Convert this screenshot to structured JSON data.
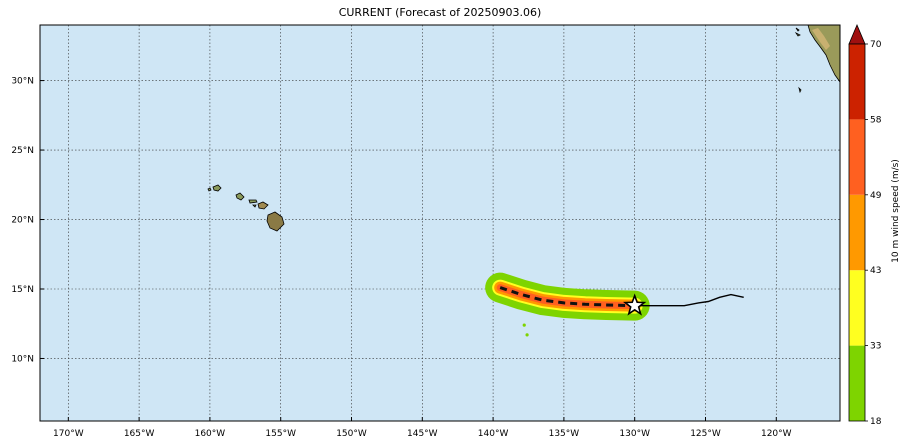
{
  "title": "CURRENT (Forecast of 20250903.06)",
  "map": {
    "lon_range": [
      -172,
      -115.5
    ],
    "lat_range": [
      5.5,
      34
    ],
    "lon_ticks": [
      {
        "value": -170,
        "label": "170°W"
      },
      {
        "value": -165,
        "label": "165°W"
      },
      {
        "value": -160,
        "label": "160°W"
      },
      {
        "value": -155,
        "label": "155°W"
      },
      {
        "value": -150,
        "label": "150°W"
      },
      {
        "value": -145,
        "label": "145°W"
      },
      {
        "value": -140,
        "label": "140°W"
      },
      {
        "value": -135,
        "label": "135°W"
      },
      {
        "value": -130,
        "label": "130°W"
      },
      {
        "value": -125,
        "label": "125°W"
      },
      {
        "value": -120,
        "label": "120°W"
      }
    ],
    "lat_ticks": [
      {
        "value": 10,
        "label": "10°N"
      },
      {
        "value": 15,
        "label": "15°N"
      },
      {
        "value": 20,
        "label": "20°N"
      },
      {
        "value": 25,
        "label": "25°N"
      },
      {
        "value": 30,
        "label": "30°N"
      }
    ],
    "ocean_color": "#cfe6f5",
    "grid": true,
    "storm_position": {
      "lon": -130,
      "lat": 13.8
    },
    "forecast_track": [
      [
        -139.5,
        15.1
      ],
      [
        -138,
        14.6
      ],
      [
        -136.5,
        14.2
      ],
      [
        -135,
        14.0
      ],
      [
        -133.5,
        13.9
      ],
      [
        -132,
        13.85
      ],
      [
        -130,
        13.8
      ]
    ],
    "past_track": [
      [
        -130,
        13.8
      ],
      [
        -126.5,
        13.8
      ],
      [
        -125.5,
        14.0
      ],
      [
        -124.8,
        14.1
      ],
      [
        -124,
        14.4
      ],
      [
        -123.2,
        14.6
      ],
      [
        -122.3,
        14.4
      ]
    ]
  },
  "colorbar": {
    "label": "10 m wind speed (m/s)",
    "levels": [
      {
        "value": "18",
        "color": "#7ed400"
      },
      {
        "value": "33",
        "color": "#ffff20"
      },
      {
        "value": "43",
        "color": "#ff9900"
      },
      {
        "value": "49",
        "color": "#ff6020"
      },
      {
        "value": "58",
        "color": "#cc2200"
      },
      {
        "value": "70",
        "color": "#a01010"
      }
    ]
  }
}
